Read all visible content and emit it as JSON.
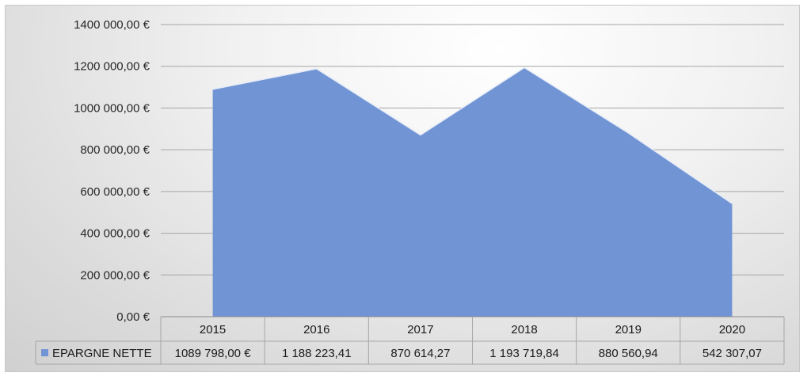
{
  "chart_data": {
    "type": "area",
    "categories": [
      "2015",
      "2016",
      "2017",
      "2018",
      "2019",
      "2020"
    ],
    "series": [
      {
        "name": "EPARGNE NETTE",
        "values": [
          1089798.0,
          1188223.41,
          870614.27,
          1193719.84,
          880560.94,
          542307.07
        ],
        "labels": [
          "1089 798,00 €",
          "1 188 223,41",
          "870 614,27",
          "1 193 719,84",
          "880 560,94",
          "542 307,07"
        ],
        "color": "#7094d4"
      }
    ],
    "yticks": [
      0,
      200000,
      400000,
      600000,
      800000,
      1000000,
      1200000,
      1400000
    ],
    "ytick_labels": [
      "0,00 €",
      "200 000,00 €",
      "400 000,00 €",
      "600 000,00 €",
      "800 000,00 €",
      "1000 000,00 €",
      "1200 000,00 €",
      "1400 000,00 €"
    ],
    "ylim": [
      0,
      1400000
    ],
    "grid": true,
    "data_table": true,
    "title": "",
    "xlabel": "",
    "ylabel": ""
  }
}
